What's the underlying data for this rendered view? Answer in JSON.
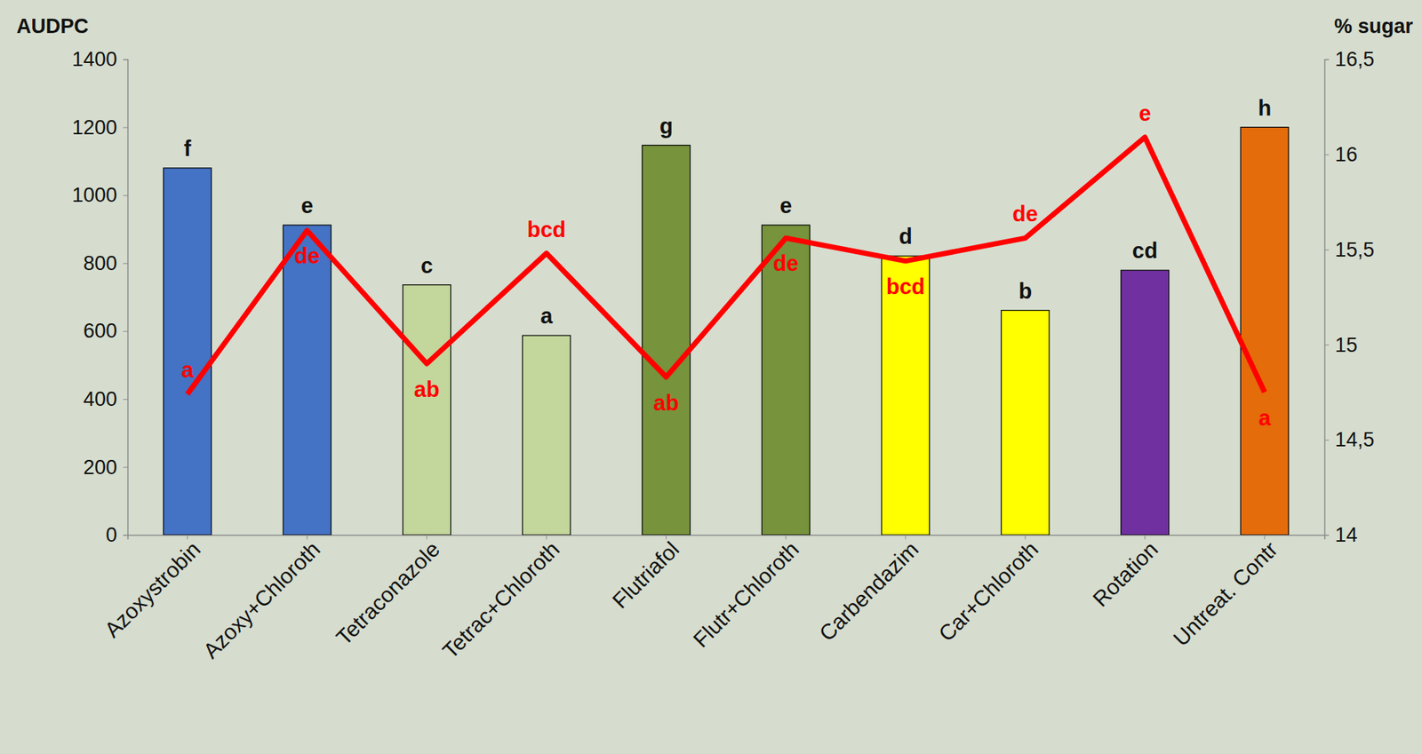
{
  "chart_data": {
    "type": "bar",
    "ylabel": "AUDPC",
    "y2label": "% sugar",
    "categories": [
      "Azoxystrobin",
      "Azoxy+Chloroth",
      "Tetraconazole",
      "Tetrac+Chloroth",
      "Flutriafol",
      "Flutr+Chloroth",
      "Carbendazim",
      "Car+Chloroth",
      "Rotation",
      "Untreat. Contr"
    ],
    "ylim": [
      0,
      1400
    ],
    "yticks": [
      0,
      200,
      400,
      600,
      800,
      1000,
      1200,
      1400
    ],
    "y2lim": [
      14,
      16.5
    ],
    "y2ticks": [
      14,
      {
        "value": 14.5,
        "label": "14,5"
      },
      15,
      {
        "value": 15.5,
        "label": "15,5"
      },
      16,
      {
        "value": 16.5,
        "label": "16,5"
      }
    ],
    "grid": false,
    "series": [
      {
        "type": "bar",
        "colors": [
          "#4472c4",
          "#4472c4",
          "#c3d69b",
          "#c3d69b",
          "#77933c",
          "#77933c",
          "#ffff00",
          "#ffff00",
          "#7030a0",
          "#e46c0a"
        ],
        "values": [
          1080,
          912,
          736,
          587,
          1147,
          912,
          821,
          661,
          779,
          1200
        ],
        "letters": [
          "f",
          "e",
          "c",
          "a",
          "g",
          "e",
          "d",
          "b",
          "cd",
          "h"
        ]
      },
      {
        "type": "line",
        "axis": "y2",
        "color": "#ff0000",
        "marker": "none",
        "line_style": "solid",
        "values": [
          14.74,
          15.6,
          14.9,
          15.48,
          14.83,
          15.56,
          15.44,
          15.56,
          16.09,
          14.75
        ],
        "letters": [
          "a",
          "de",
          "ab",
          "bcd",
          "ab",
          "de",
          "bcd",
          "de",
          "e",
          "a"
        ]
      }
    ]
  }
}
